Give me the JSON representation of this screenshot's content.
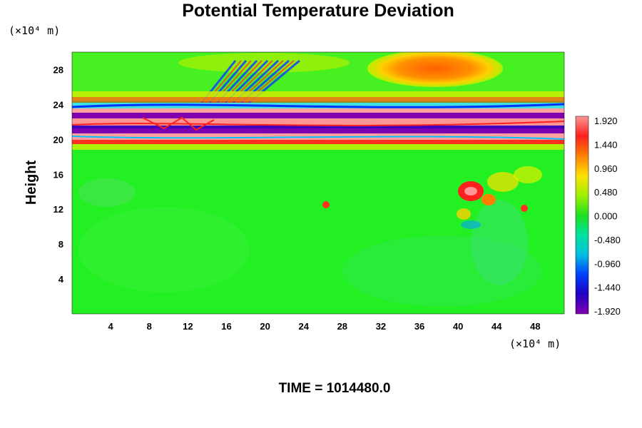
{
  "chart_data": {
    "type": "heatmap",
    "title": "Potential Temperature Deviation",
    "ylabel": "Height",
    "xunit": "(×10⁴ m)",
    "yunit": "(×10⁴ m)",
    "xlim": [
      0,
      51
    ],
    "ylim": [
      0,
      30
    ],
    "xticks": [
      4,
      8,
      12,
      16,
      20,
      24,
      28,
      32,
      36,
      40,
      44,
      48
    ],
    "yticks": [
      4,
      8,
      12,
      16,
      20,
      24,
      28
    ],
    "colorbar": {
      "range": [
        -1.92,
        1.92
      ],
      "ticks": [
        "1.920",
        "1.440",
        "0.960",
        "0.480",
        "0.000",
        "-0.480",
        "-0.960",
        "-1.440",
        "-1.920"
      ]
    },
    "footer": "TIME = 1014480.0"
  },
  "colors": {
    "background_field": "#22f022",
    "positive_max": "#ff9090",
    "negative_max": "#7a00b0"
  }
}
